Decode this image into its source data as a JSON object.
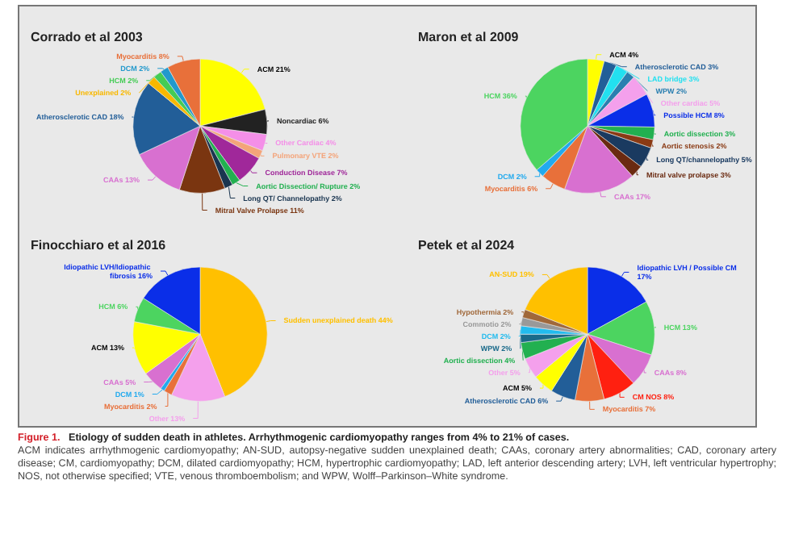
{
  "chart_data": [
    {
      "type": "pie",
      "title": "Corrado et al 2003",
      "categories": [
        "ACM",
        "Noncardiac",
        "Other Cardiac",
        "Pulmonary VTE",
        "Conduction Disease",
        "Aortic Dissection/ Rupture",
        "Long QT/ Channelopathy",
        "Mitral Valve Prolapse",
        "CAAs",
        "Atherosclerotic CAD",
        "Unexplained",
        "HCM",
        "DCM",
        "Myocarditis"
      ],
      "values": [
        21,
        6,
        4,
        2,
        7,
        2,
        2,
        11,
        13,
        18,
        2,
        2,
        2,
        8
      ],
      "value_labels": [
        "21%",
        "6%",
        "4%",
        "2%",
        "7%",
        "2%",
        "2%",
        "11%",
        "13%",
        "18%",
        "2%",
        "2%",
        "2%",
        "8%"
      ],
      "colors": [
        "#ffff00",
        "#222222",
        "#f48fe8",
        "#f4a47a",
        "#a0289a",
        "#22b050",
        "#1a3550",
        "#7a3510",
        "#d870d0",
        "#225e98",
        "#f8b800",
        "#44cc55",
        "#2299cc",
        "#e8703a"
      ]
    },
    {
      "type": "pie",
      "title": "Maron et al 2009",
      "categories": [
        "ACM",
        "Atherosclerotic CAD",
        "LAD bridge",
        "WPW",
        "Other cardiac",
        "Possible HCM",
        "Aortic dissection",
        "Aortic stenosis",
        "Long QT/channelopathy",
        "Mitral valve prolapse",
        "CAAs",
        "Myocarditis",
        "DCM",
        "HCM"
      ],
      "values": [
        4,
        3,
        3,
        2,
        5,
        8,
        3,
        2,
        5,
        3,
        17,
        6,
        2,
        36
      ],
      "value_labels": [
        "4%",
        "3%",
        "3%",
        "2%",
        "5%",
        "8%",
        "3%",
        "2%",
        "5%",
        "3%",
        "17%",
        "6%",
        "2%",
        "36%"
      ],
      "colors": [
        "#ffff00",
        "#225e98",
        "#22e0f0",
        "#2a7fb0",
        "#f4a0ec",
        "#0a2ee8",
        "#22b050",
        "#8a3a14",
        "#1a3a60",
        "#6a2a10",
        "#d870d0",
        "#e8703a",
        "#22aaee",
        "#4cd460"
      ]
    },
    {
      "type": "pie",
      "title": "Finocchiaro et al 2016",
      "categories": [
        "Sudden unexplained death",
        "Other",
        "Myocarditis",
        "DCM",
        "CAAs",
        "ACM",
        "HCM",
        "Idiopathic LVH/Idiopathic fibrosis"
      ],
      "values": [
        44,
        13,
        2,
        1,
        5,
        13,
        6,
        16
      ],
      "value_labels": [
        "44%",
        "13%",
        "2%",
        "1%",
        "5%",
        "13%",
        "6%",
        "16%"
      ],
      "colors": [
        "#ffc000",
        "#f4a0ec",
        "#e8703a",
        "#22aaee",
        "#d870d0",
        "#ffff00",
        "#4cd460",
        "#0a2ee8"
      ]
    },
    {
      "type": "pie",
      "title": "Petek et al 2024",
      "categories": [
        "Idiopathic LVH / Possible CM",
        "HCM",
        "CAAs",
        "CM NOS",
        "Myocarditis",
        "Atherosclerotic CAD",
        "ACM",
        "Other",
        "Aortic dissection",
        "WPW",
        "DCM",
        "Commotio",
        "Hypothermia",
        "AN-SUD"
      ],
      "values": [
        17,
        13,
        8,
        8,
        7,
        6,
        5,
        5,
        4,
        2,
        2,
        2,
        2,
        19
      ],
      "value_labels": [
        "17%",
        "13%",
        "8%",
        "8%",
        "7%",
        "6%",
        "5%",
        "5%",
        "4%",
        "2%",
        "2%",
        "2%",
        "2%",
        "19%"
      ],
      "colors": [
        "#0a2ee8",
        "#4cd460",
        "#d870d0",
        "#ff2010",
        "#e8703a",
        "#225e98",
        "#ffff00",
        "#f4a0ec",
        "#22b050",
        "#1a6a8a",
        "#22bbee",
        "#999999",
        "#a0683a",
        "#ffc000"
      ],
      "annotations": [
        "Figure 1.",
        "Etiology of sudden death in athletes. Arrhythmogenic cardiomyopathy ranges from 4% to 21% of cases.",
        "ACM indicates arrhythmogenic cardiomyopathy; AN-SUD, autopsy-negative sudden unexplained death; CAAs, coronary artery abnormalities; CAD, coronary artery disease; CM, cardiomyopathy; DCM, dilated cardiomyopathy; HCM, hypertrophic cardiomyopathy; LAD, left anterior descending artery; LVH, left ventricular hypertrophy; NOS, not otherwise specified; VTE, venous thromboembolism; and WPW, Wolff–Parkinson–White syndrome."
      ]
    }
  ]
}
